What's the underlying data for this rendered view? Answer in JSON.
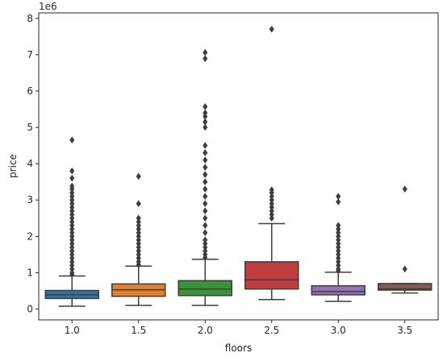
{
  "chart_data": {
    "type": "box",
    "xlabel": "floors",
    "ylabel": "price",
    "y_offset_label": "1e6",
    "ylim": [
      -300000,
      8150000
    ],
    "yticks": [
      0,
      1000000,
      2000000,
      3000000,
      4000000,
      5000000,
      6000000,
      7000000,
      8000000
    ],
    "ytick_labels": [
      "0",
      "1",
      "2",
      "3",
      "4",
      "5",
      "6",
      "7",
      "8"
    ],
    "grid": false,
    "categories": [
      "1.0",
      "1.5",
      "2.0",
      "2.5",
      "3.0",
      "3.5"
    ],
    "boxes": [
      {
        "category": "1.0",
        "color": "#3274a1",
        "q1": 290000,
        "median": 390000,
        "q3": 510000,
        "whisker_low": 78000,
        "whisker_high": 910000,
        "outliers": [
          4650000,
          3800000,
          3600000,
          3380000,
          3300000,
          3200000,
          3100000,
          3000000,
          2900000,
          2800000,
          2700000,
          2600000,
          2500000,
          2400000,
          2300000,
          2200000,
          2100000,
          2000000,
          1900000,
          1800000,
          1700000,
          1600000,
          1500000,
          1400000,
          1300000,
          1200000,
          1100000,
          1000000,
          950000
        ]
      },
      {
        "category": "1.5",
        "color": "#e1812c",
        "q1": 350000,
        "median": 530000,
        "q3": 690000,
        "whisker_low": 100000,
        "whisker_high": 1180000,
        "outliers": [
          3650000,
          2900000,
          2500000,
          2400000,
          2300000,
          2200000,
          2100000,
          2000000,
          1900000,
          1800000,
          1700000,
          1600000,
          1500000,
          1400000,
          1300000,
          1220000
        ]
      },
      {
        "category": "2.0",
        "color": "#3a923a",
        "q1": 370000,
        "median": 550000,
        "q3": 780000,
        "whisker_low": 100000,
        "whisker_high": 1370000,
        "outliers": [
          7060000,
          6890000,
          5570000,
          5400000,
          5300000,
          5150000,
          5000000,
          4500000,
          4300000,
          4100000,
          3900000,
          3700000,
          3500000,
          3300000,
          3100000,
          2900000,
          2700000,
          2500000,
          2300000,
          2100000,
          1900000,
          1800000,
          1700000,
          1600000,
          1500000,
          1420000
        ]
      },
      {
        "category": "2.5",
        "color": "#c03d3e",
        "q1": 550000,
        "median": 800000,
        "q3": 1300000,
        "whisker_low": 260000,
        "whisker_high": 2350000,
        "outliers": [
          7700000,
          3280000,
          3200000,
          3100000,
          3000000,
          2900000,
          2800000,
          2700000,
          2600000,
          2500000
        ]
      },
      {
        "category": "3.0",
        "color": "#9372b2",
        "q1": 390000,
        "median": 480000,
        "q3": 640000,
        "whisker_low": 210000,
        "whisker_high": 1010000,
        "outliers": [
          3100000,
          2950000,
          2300000,
          2200000,
          2100000,
          2000000,
          1900000,
          1800000,
          1700000,
          1600000,
          1500000,
          1400000,
          1300000,
          1200000,
          1100000,
          1050000
        ]
      },
      {
        "category": "3.5",
        "color": "#845b53",
        "q1": 520000,
        "median": 550000,
        "q3": 700000,
        "whisker_low": 440000,
        "whisker_high": 700000,
        "outliers": [
          3300000,
          1100000
        ]
      }
    ]
  }
}
